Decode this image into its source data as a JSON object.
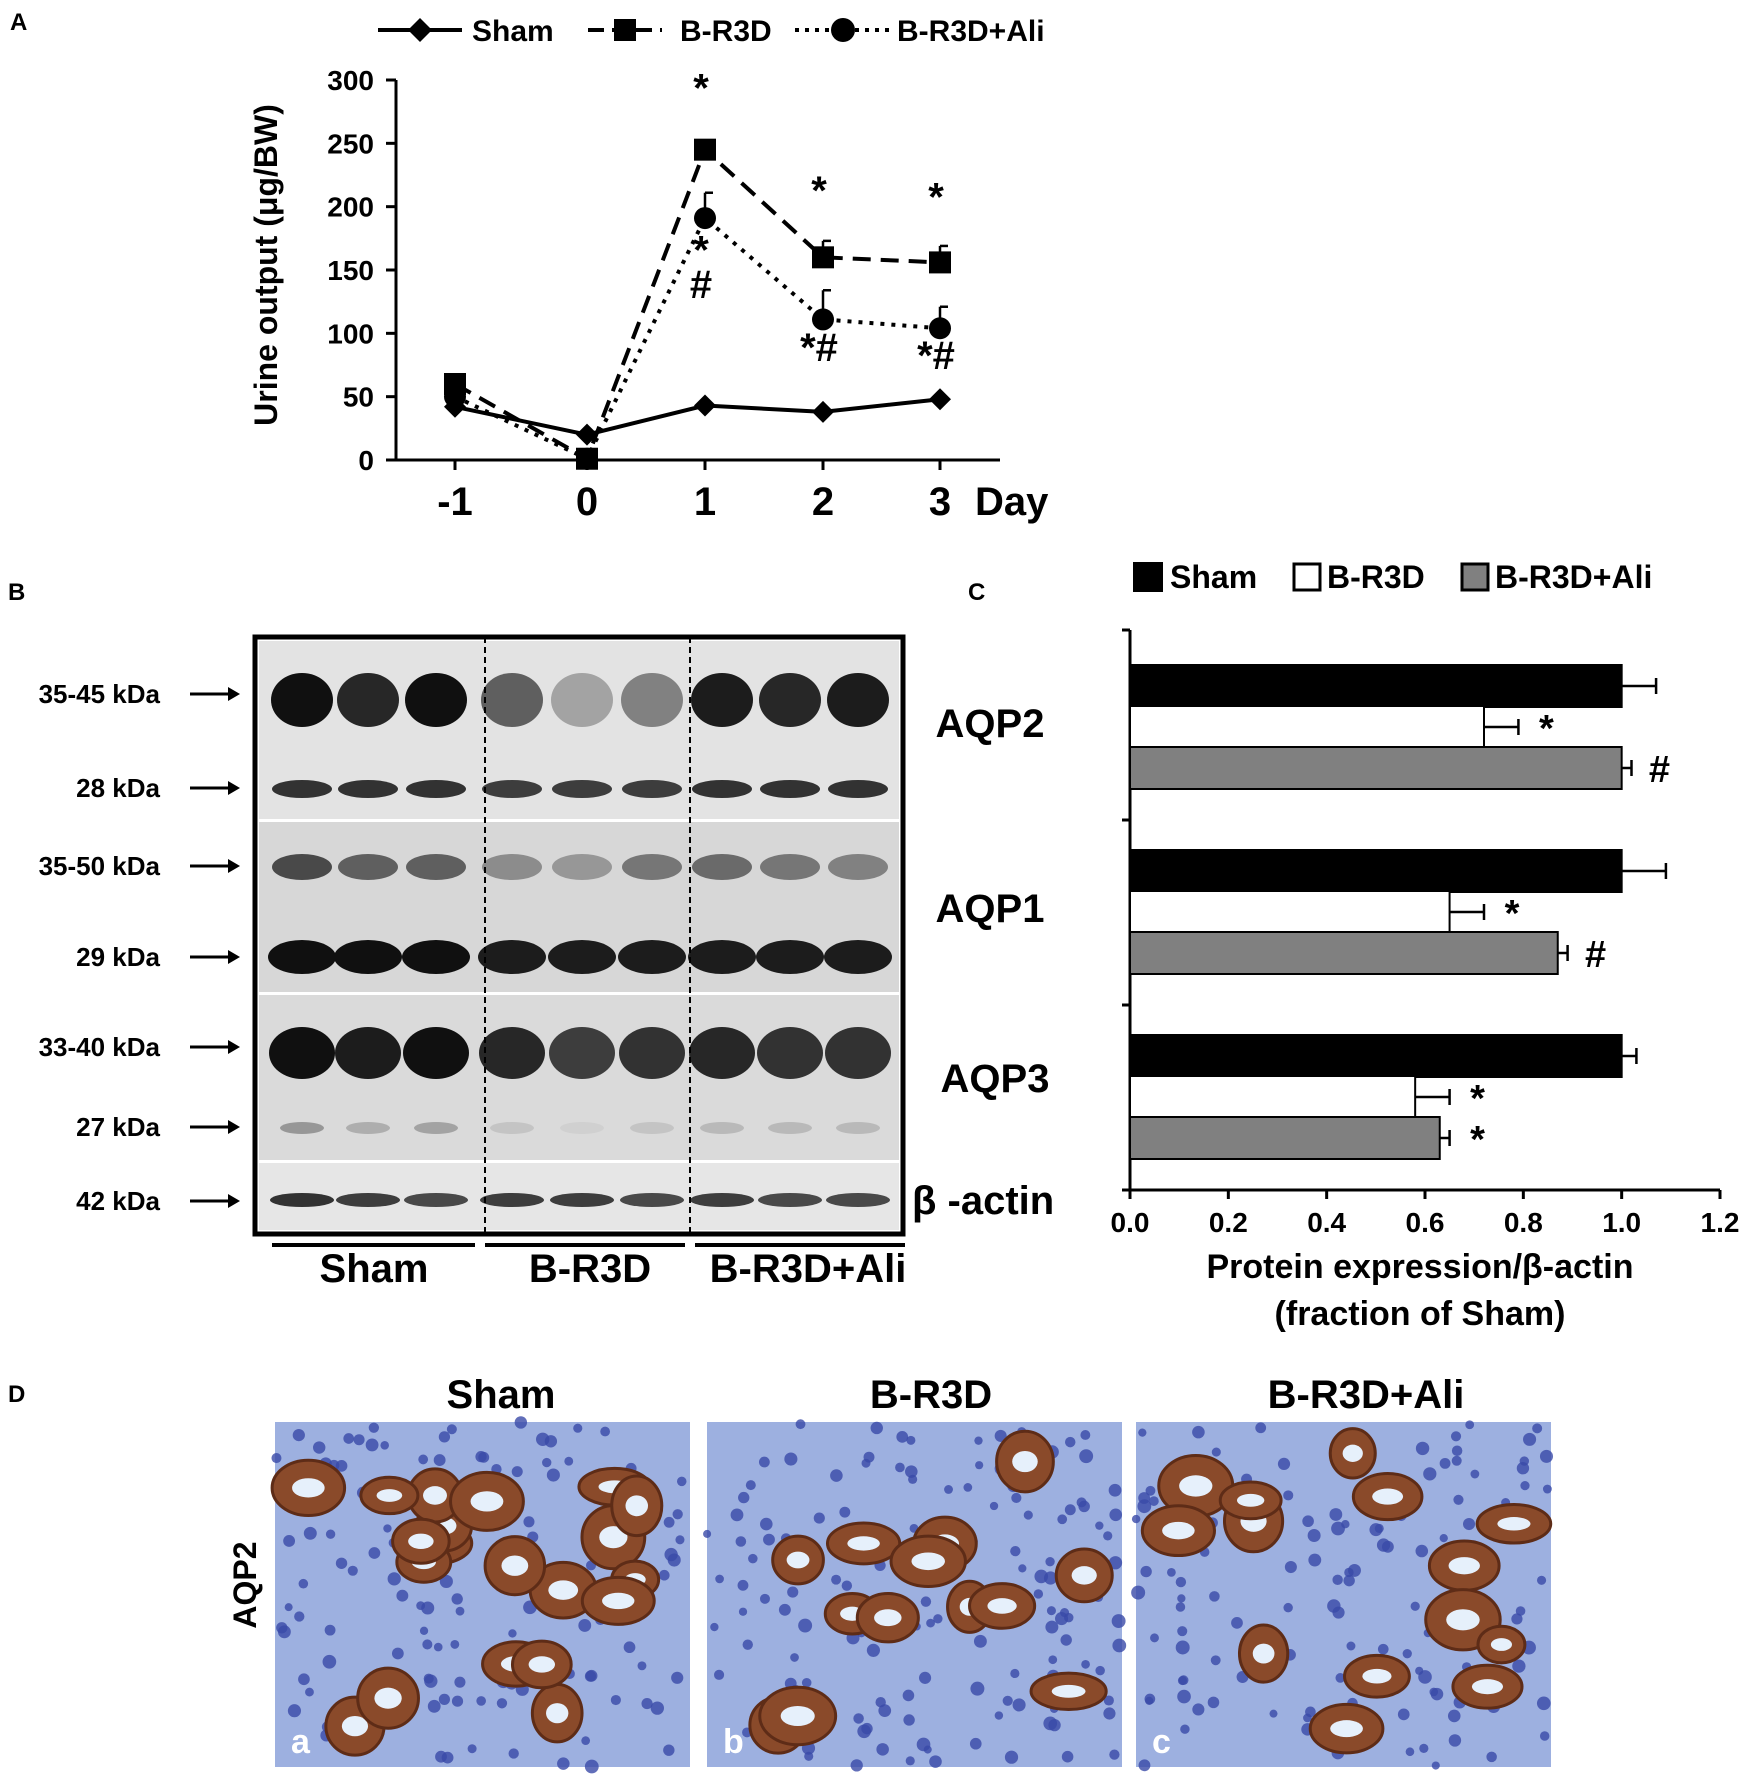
{
  "panels": {
    "a": "A",
    "b": "B",
    "c": "C",
    "d": "D"
  },
  "groups": [
    "Sham",
    "B-R3D",
    "B-R3D+Ali"
  ],
  "panel_a": {
    "ylabel": "Urine output (μg/BW)",
    "xunit": "Day",
    "legend": [
      "Sham",
      "B-R3D",
      "B-R3D+Ali"
    ]
  },
  "chart_data": [
    {
      "type": "line",
      "x": [
        -1,
        0,
        1,
        2,
        3
      ],
      "xticks": [
        "-1",
        "0",
        "1",
        "2",
        "3"
      ],
      "xunit": "Day",
      "ylabel": "Urine output (μg/BW)",
      "ylim": [
        0,
        300
      ],
      "yticks": [
        0,
        50,
        100,
        150,
        200,
        250,
        300
      ],
      "series": [
        {
          "name": "Sham",
          "style": "solid",
          "marker": "diamond",
          "values": [
            42,
            20,
            43,
            38,
            48
          ],
          "errors": [
            0,
            0,
            0,
            0,
            0
          ]
        },
        {
          "name": "B-R3D",
          "style": "dashed",
          "marker": "square",
          "values": [
            60,
            1,
            245,
            160,
            156
          ],
          "errors": [
            0,
            0,
            5,
            13,
            13
          ]
        },
        {
          "name": "B-R3D+Ali",
          "style": "dotted",
          "marker": "circle",
          "values": [
            50,
            1,
            191,
            111,
            104
          ],
          "errors": [
            0,
            0,
            20,
            23,
            17
          ]
        }
      ],
      "annotations": [
        {
          "x": 1,
          "text": "*",
          "y": 283
        },
        {
          "x": 1,
          "text": "*",
          "y": 155
        },
        {
          "x": 1,
          "text": "#",
          "y": 128
        },
        {
          "x": 2,
          "text": "*",
          "y": 202
        },
        {
          "x": 2,
          "text": "*#",
          "y": 78
        },
        {
          "x": 3,
          "text": "*",
          "y": 197
        },
        {
          "x": 3,
          "text": "*#",
          "y": 72
        }
      ]
    },
    {
      "type": "bar",
      "orientation": "horizontal",
      "categories": [
        "AQP2",
        "AQP1",
        "AQP3"
      ],
      "series": [
        {
          "name": "Sham",
          "color": "#000000",
          "values": [
            1.0,
            1.0,
            1.0
          ],
          "errors": [
            0.07,
            0.09,
            0.03
          ]
        },
        {
          "name": "B-R3D",
          "color": "#ffffff",
          "values": [
            0.72,
            0.65,
            0.58
          ],
          "errors": [
            0.07,
            0.07,
            0.07
          ]
        },
        {
          "name": "B-R3D+Ali",
          "color": "#808080",
          "values": [
            1.0,
            0.87,
            0.63
          ],
          "errors": [
            0.02,
            0.02,
            0.02
          ]
        }
      ],
      "significance": [
        [
          "",
          "*",
          "#"
        ],
        [
          "",
          "*",
          "#"
        ],
        [
          "",
          "*",
          "*"
        ]
      ],
      "xlim": [
        0,
        1.2
      ],
      "xticks": [
        "0.0",
        "0.2",
        "0.4",
        "0.6",
        "0.8",
        "1.0",
        "1.2"
      ],
      "xlabel_line1": "Protein expression/β-actin",
      "xlabel_line2": "(fraction of Sham)",
      "legend": [
        "Sham",
        "B-R3D",
        "B-R3D+Ali"
      ]
    }
  ],
  "panel_b": {
    "kda_labels": [
      "35-45 kDa",
      "28 kDa",
      "35-50 kDa",
      "29 kDa",
      "33-40 kDa",
      "27 kDa",
      "42 kDa"
    ],
    "protein_labels": [
      "AQP2",
      "AQP1",
      "AQP3",
      "β -actin"
    ],
    "band_intensity": {
      "aqp2_glyco": [
        0.95,
        0.85,
        0.95,
        0.6,
        0.3,
        0.45,
        0.9,
        0.85,
        0.9
      ],
      "aqp2_core": [
        0.8,
        0.8,
        0.8,
        0.75,
        0.75,
        0.75,
        0.8,
        0.8,
        0.8
      ],
      "aqp1_glyco": [
        0.7,
        0.6,
        0.6,
        0.4,
        0.35,
        0.5,
        0.55,
        0.5,
        0.45
      ],
      "aqp1_core": [
        0.95,
        0.95,
        0.95,
        0.9,
        0.9,
        0.9,
        0.9,
        0.9,
        0.9
      ],
      "aqp3_glyco": [
        0.95,
        0.9,
        0.95,
        0.85,
        0.75,
        0.8,
        0.85,
        0.8,
        0.8
      ],
      "aqp3_core": [
        0.35,
        0.25,
        0.3,
        0.15,
        0.1,
        0.15,
        0.2,
        0.2,
        0.2
      ],
      "actin": [
        0.8,
        0.75,
        0.7,
        0.75,
        0.75,
        0.7,
        0.75,
        0.7,
        0.7
      ]
    }
  },
  "panel_d": {
    "row_label": "AQP2",
    "sublabels": [
      "a",
      "b",
      "c"
    ],
    "tissue_colors": {
      "background": "#9db0e0",
      "nuclei": "#3a4aa8",
      "stain": "#8a4a2a",
      "lumen": "#e6f0fb"
    }
  }
}
